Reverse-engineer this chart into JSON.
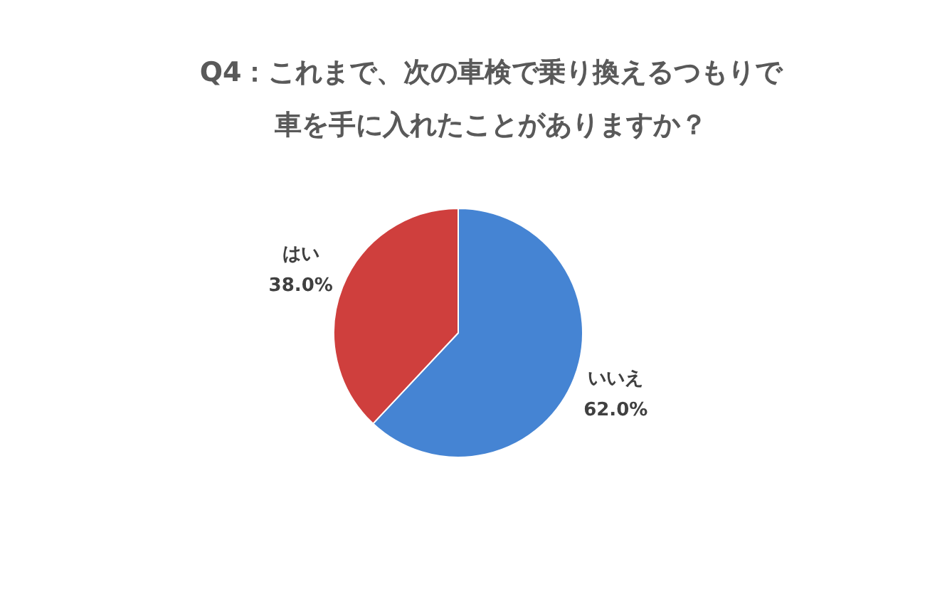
{
  "chart_data": {
    "type": "pie",
    "title": "Q4：これまで、次の車検で乗り換えるつもりで車を手に入れたことがありますか？",
    "categories": [
      "いいえ",
      "はい"
    ],
    "values": [
      62.0,
      38.0
    ],
    "colors": [
      "#4584d3",
      "#cf3f3d"
    ],
    "value_labels": [
      "62.0%",
      "38.0%"
    ]
  }
}
